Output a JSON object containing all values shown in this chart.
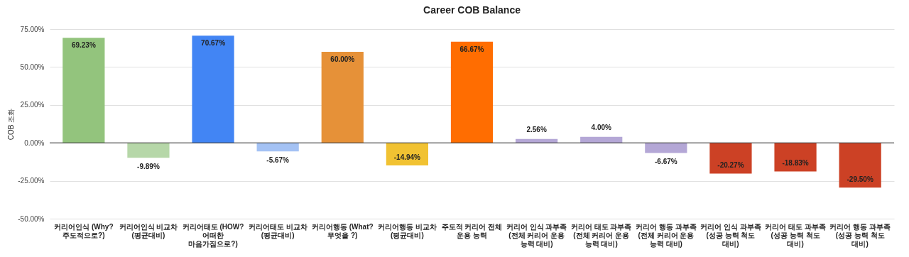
{
  "chart_data": {
    "type": "bar",
    "title": "Career COB Balance",
    "ylabel": "COB 조화",
    "categories": [
      "커리어인식 (Why? 주도적으로?)",
      "커리어인식 비교차 (평균대비)",
      "커리어태도 (HOW? 어떠한 마음가짐으로?)",
      "커리어태도 비교차 (평균대비)",
      "커리어행동 (What? 무엇을 ?)",
      "커리어행동 비교차 (평균대비)",
      "주도적 커리어 전체 운용 능력",
      "커리어 인식 과부족 (전체 커리어 운용 능력 대비)",
      "커리어 태도 과부족 (전체 커리어 운용 능력 대비)",
      "커리어 행동 과부족 (전체 커리어 운용 능력 대비)",
      "커리어 인식 과부족 (성공 능력 척도 대비)",
      "커리어 태도 과부족 (성공 능력 척도 대비)",
      "커리어 행동 과부족 (성공 능력 척도 대비)"
    ],
    "values": [
      69.23,
      -9.89,
      70.67,
      -5.67,
      60.0,
      -14.94,
      66.67,
      2.56,
      4.0,
      -6.67,
      -20.27,
      -18.83,
      -29.5
    ],
    "value_labels": [
      "69.23%",
      "-9.89%",
      "70.67%",
      "-5.67%",
      "60.00%",
      "-14.94%",
      "66.67%",
      "2.56%",
      "4.00%",
      "-6.67%",
      "-20.27%",
      "-18.83%",
      "-29.50%"
    ],
    "colors": [
      "#93c47d",
      "#b6d7a8",
      "#4285f4",
      "#a4c2f4",
      "#e69138",
      "#f1c232",
      "#ff6d01",
      "#b4a7d6",
      "#b4a7d6",
      "#b4a7d6",
      "#cc4125",
      "#cc4125",
      "#cc4125"
    ],
    "ylim": [
      -50,
      75
    ],
    "yticks": [
      {
        "value": -50,
        "label": "-50.00%"
      },
      {
        "value": -25,
        "label": "-25.00%"
      },
      {
        "value": 0,
        "label": "0.00%"
      },
      {
        "value": 25,
        "label": "25.00%"
      },
      {
        "value": 50,
        "label": "50.00%"
      },
      {
        "value": 75,
        "label": "75.00%"
      }
    ],
    "grid": "y"
  }
}
